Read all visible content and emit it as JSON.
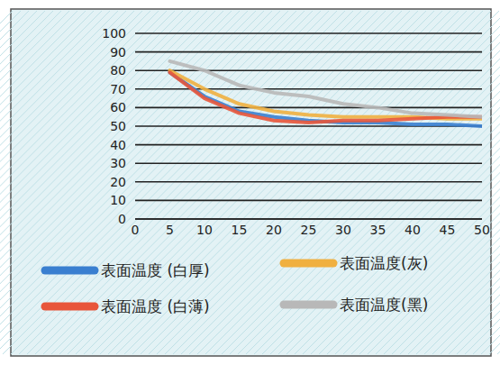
{
  "chart_data": {
    "type": "line",
    "x": [
      5,
      10,
      15,
      20,
      25,
      30,
      35,
      40,
      45,
      50
    ],
    "series": [
      {
        "name": "表面温度 (白厚)",
        "color": "#3a7fd0",
        "values": [
          79,
          66,
          58,
          55,
          53,
          52,
          52,
          51,
          51,
          50
        ]
      },
      {
        "name": "表面温度(灰)",
        "color": "#f0b040",
        "values": [
          80,
          70,
          62,
          58,
          56,
          55,
          55,
          55,
          54,
          54
        ]
      },
      {
        "name": "表面温度 (白薄)",
        "color": "#e8553a",
        "values": [
          79,
          65,
          57,
          53,
          52,
          53,
          53,
          54,
          55,
          55
        ]
      },
      {
        "name": "表面温度(黑)",
        "color": "#b8b8b8",
        "values": [
          85,
          80,
          72,
          68,
          66,
          62,
          60,
          57,
          56,
          55
        ]
      }
    ],
    "xlim": [
      0,
      50
    ],
    "xticks": [
      0,
      5,
      10,
      15,
      20,
      25,
      30,
      35,
      40,
      45,
      50
    ],
    "ylim": [
      0,
      100
    ],
    "yticks": [
      0,
      10,
      20,
      30,
      40,
      50,
      60,
      70,
      80,
      90,
      100
    ],
    "grid": true,
    "legend": "bottom"
  }
}
